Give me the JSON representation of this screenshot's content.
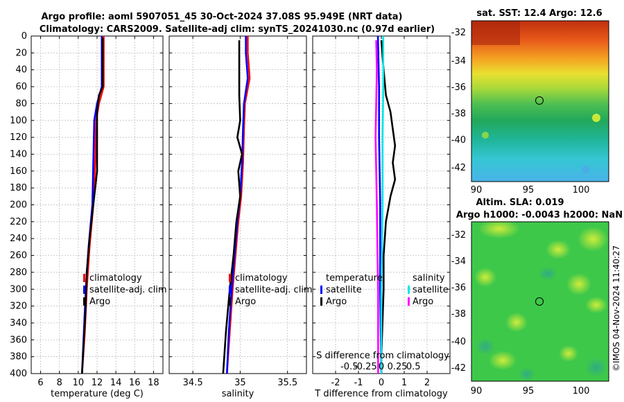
{
  "header": {
    "title_line1": "Argo profile: aoml 5907051_45 30-Oct-2024 37.08S 95.949E (NRT data)",
    "title_line2": "Climatology: CARS2009. Satellite-adj clim: synTS_20241030.nc (0.97d earlier)"
  },
  "colors": {
    "climatology": "#ff0000",
    "satellite": "#0000ff",
    "argo": "#000000",
    "sat_salinity": "#00e5e5",
    "argo_salinity": "#ff00ff"
  },
  "chart_data": [
    {
      "id": "temperature-profile",
      "type": "line",
      "xlabel": "temperature (deg C)",
      "xlim": [
        5,
        19
      ],
      "xticks": [
        6,
        8,
        10,
        12,
        14,
        16,
        18
      ],
      "ylim": [
        400,
        0
      ],
      "yticks": [
        0,
        20,
        40,
        60,
        80,
        100,
        120,
        140,
        160,
        180,
        200,
        220,
        240,
        260,
        280,
        300,
        320,
        340,
        360,
        380,
        400
      ],
      "legend": [
        "climatology",
        "satellite-adj. clim",
        "Argo"
      ],
      "series": [
        {
          "name": "climatology",
          "color": "#ff0000",
          "depth": [
            0,
            60,
            80,
            100,
            150,
            200,
            250,
            300,
            350,
            400
          ],
          "values": [
            12.7,
            12.7,
            12.2,
            11.9,
            11.8,
            11.6,
            11.2,
            10.9,
            10.7,
            10.4
          ]
        },
        {
          "name": "satellite-adj. clim",
          "color": "#0000ff",
          "depth": [
            0,
            60,
            80,
            100,
            150,
            200,
            250,
            300,
            350,
            400
          ],
          "values": [
            12.5,
            12.5,
            12.0,
            11.7,
            11.6,
            11.5,
            11.1,
            10.8,
            10.6,
            10.4
          ]
        },
        {
          "name": "Argo",
          "color": "#000000",
          "depth": [
            2,
            60,
            70,
            90,
            110,
            160,
            180,
            200,
            240,
            280,
            320,
            360,
            400
          ],
          "values": [
            12.6,
            12.6,
            12.2,
            12.0,
            12.0,
            12.0,
            11.8,
            11.6,
            11.2,
            10.9,
            10.8,
            10.6,
            10.4
          ]
        }
      ]
    },
    {
      "id": "salinity-profile",
      "type": "line",
      "xlabel": "salinity",
      "xlim": [
        34.25,
        35.7
      ],
      "xticks": [
        34.5,
        35,
        35.5
      ],
      "ylim": [
        400,
        0
      ],
      "legend": [
        "climatology",
        "satellite-adj. clim",
        "Argo"
      ],
      "series": [
        {
          "name": "climatology",
          "color": "#ff0000",
          "depth": [
            0,
            20,
            50,
            80,
            110,
            150,
            190,
            220,
            260,
            300,
            350,
            400
          ],
          "values": [
            35.08,
            35.08,
            35.1,
            35.05,
            35.04,
            35.03,
            35.01,
            34.98,
            34.95,
            34.92,
            34.89,
            34.86
          ]
        },
        {
          "name": "satellite-adj. clim",
          "color": "#0000ff",
          "depth": [
            0,
            20,
            50,
            80,
            110,
            150,
            190,
            220,
            260,
            300,
            350,
            400
          ],
          "values": [
            35.06,
            35.06,
            35.08,
            35.04,
            35.03,
            35.02,
            35.0,
            34.97,
            34.94,
            34.91,
            34.88,
            34.86
          ]
        },
        {
          "name": "Argo",
          "color": "#000000",
          "depth": [
            5,
            40,
            70,
            100,
            120,
            140,
            160,
            190,
            220,
            260,
            300,
            350,
            400
          ],
          "values": [
            34.99,
            34.99,
            34.99,
            35.0,
            34.97,
            35.02,
            34.98,
            35.0,
            34.96,
            34.93,
            34.89,
            34.85,
            34.82
          ]
        }
      ]
    },
    {
      "id": "difference-profile",
      "type": "line",
      "xlabel": "T difference from climatology",
      "xlabel_top": "S difference from climatology",
      "xlim": [
        -3,
        3
      ],
      "xticks": [
        -2,
        -1,
        0,
        1,
        2
      ],
      "xticks_salinity": [
        "-0.5",
        "-0.25",
        "0",
        "0.25",
        "0.5"
      ],
      "xticks_salinity_values": [
        -0.5,
        -0.25,
        0,
        0.25,
        0.5
      ],
      "ylim": [
        400,
        0
      ],
      "legend": {
        "temperature_header": "temperature",
        "salinity_header": "salinity",
        "items": [
          "satellite",
          "Argo",
          "satellite",
          "Argo"
        ]
      },
      "series": [
        {
          "name": "temperature satellite",
          "color": "#0000ff",
          "depth": [
            0,
            60,
            120,
            200,
            300,
            400
          ],
          "values": [
            -0.15,
            -0.1,
            -0.1,
            -0.05,
            -0.05,
            0.0
          ]
        },
        {
          "name": "temperature Argo",
          "color": "#000000",
          "depth": [
            5,
            40,
            70,
            90,
            110,
            130,
            150,
            170,
            190,
            220,
            260,
            300,
            340,
            380,
            400
          ],
          "values": [
            0.0,
            0.1,
            0.2,
            0.4,
            0.5,
            0.6,
            0.5,
            0.6,
            0.4,
            0.2,
            0.1,
            0.1,
            0.05,
            0.0,
            0.0
          ]
        },
        {
          "name": "salinity satellite",
          "color": "#00e5e5",
          "depth": [
            0,
            60,
            120,
            200,
            300,
            400
          ],
          "values": [
            0.03,
            0.03,
            0.02,
            0.02,
            0.0,
            0.0
          ]
        },
        {
          "name": "salinity Argo",
          "color": "#ff00ff",
          "depth": [
            5,
            40,
            80,
            120,
            160,
            200,
            260,
            300,
            350,
            400
          ],
          "values": [
            -0.08,
            -0.07,
            -0.08,
            -0.09,
            -0.08,
            -0.07,
            -0.06,
            -0.05,
            -0.05,
            -0.05
          ]
        }
      ]
    }
  ],
  "maps": {
    "sst": {
      "title": "sat. SST: 12.4 Argo: 12.6",
      "xticks": [
        "90",
        "95",
        "100"
      ],
      "yticks": [
        "-32",
        "-34",
        "-36",
        "-38",
        "-40",
        "-42"
      ]
    },
    "sla": {
      "title1": "Altim. SLA: 0.019",
      "title2": "Argo h1000: -0.0043 h2000: NaN",
      "xticks": [
        "90",
        "95",
        "100"
      ],
      "yticks": [
        "-32",
        "-34",
        "-36",
        "-38",
        "-40",
        "-42"
      ]
    }
  },
  "watermark": "©IMOS 04-Nov-2024 11:40:27"
}
